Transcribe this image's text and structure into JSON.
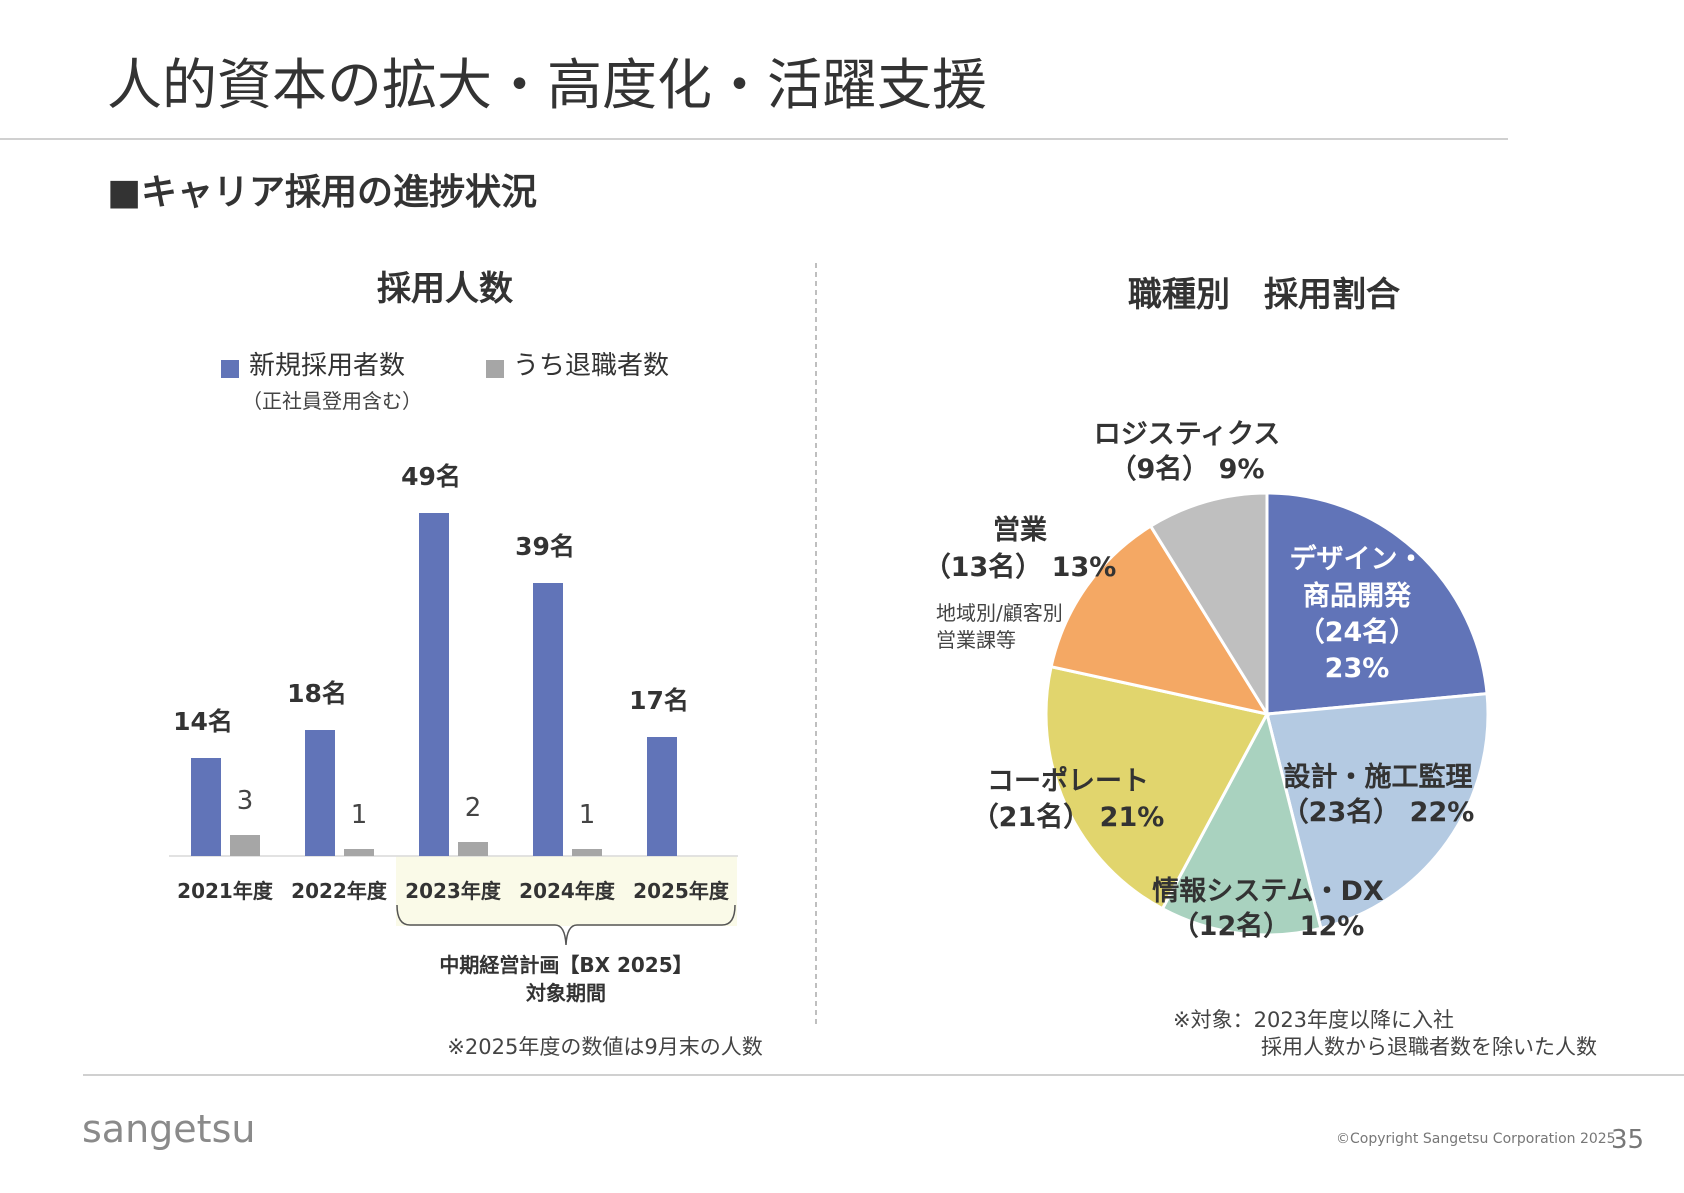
{
  "slide": {
    "title": "人的資本の拡大・高度化・活躍支援",
    "section_heading": "■キャリア採用の進捗状況",
    "logo_text": "sangetsu",
    "copyright": "©Copyright Sangetsu Corporation 2025",
    "page_number": "35"
  },
  "chart_data": [
    {
      "type": "bar",
      "title": "採用人数",
      "categories": [
        "2021年度",
        "2022年度",
        "2023年度",
        "2024年度",
        "2025年度"
      ],
      "series": [
        {
          "name": "新規採用者数",
          "legend_sub": "（正社員登用含む）",
          "color": "#6174b8",
          "values": [
            14,
            18,
            49,
            39,
            17
          ],
          "labels": [
            "14名",
            "18名",
            "49名",
            "39名",
            "17名"
          ]
        },
        {
          "name": "うち退職者数",
          "color": "#a6a6a6",
          "values": [
            3,
            1,
            2,
            1,
            null
          ],
          "labels": [
            "3",
            "1",
            "2",
            "1",
            ""
          ]
        }
      ],
      "legend_position": "top",
      "grid": false,
      "highlight": {
        "categories": [
          "2023年度",
          "2024年度",
          "2025年度"
        ],
        "label_line1": "中期経営計画【BX 2025】",
        "label_line2": "対象期間",
        "color": "#fafae8"
      },
      "note": "※2025年度の数値は9月末の人数"
    },
    {
      "type": "pie",
      "title": "職種別　採用割合",
      "slices": [
        {
          "name": "デザイン・商品開発",
          "lines": [
            "デザイン・",
            "商品開発",
            "（24名）",
            "23%"
          ],
          "count": 24,
          "percent": 23,
          "color": "#6174b8"
        },
        {
          "name": "設計・施工監理",
          "lines": [
            "設計・施工監理",
            "（23名） 22%"
          ],
          "count": 23,
          "percent": 22,
          "color": "#b4cae2"
        },
        {
          "name": "情報システム・DX",
          "lines": [
            "情報システム・DX",
            "（12名） 12%"
          ],
          "count": 12,
          "percent": 12,
          "color": "#a9d2bf"
        },
        {
          "name": "コーポレート",
          "lines": [
            "コーポレート",
            "（21名） 21%"
          ],
          "count": 21,
          "percent": 21,
          "color": "#e1d56d"
        },
        {
          "name": "営業",
          "lines": [
            "営業",
            "（13名） 13%"
          ],
          "sub": [
            "地域別/顧客別",
            "営業課等"
          ],
          "count": 13,
          "percent": 13,
          "color": "#f4a864"
        },
        {
          "name": "ロジスティクス",
          "lines": [
            "ロジスティクス",
            "（9名） 9%"
          ],
          "count": 9,
          "percent": 9,
          "color": "#bfbfbf"
        }
      ],
      "note_line1": "※対象：2023年度以降に入社",
      "note_line2": "採用人数から退職者数を除いた人数"
    }
  ]
}
